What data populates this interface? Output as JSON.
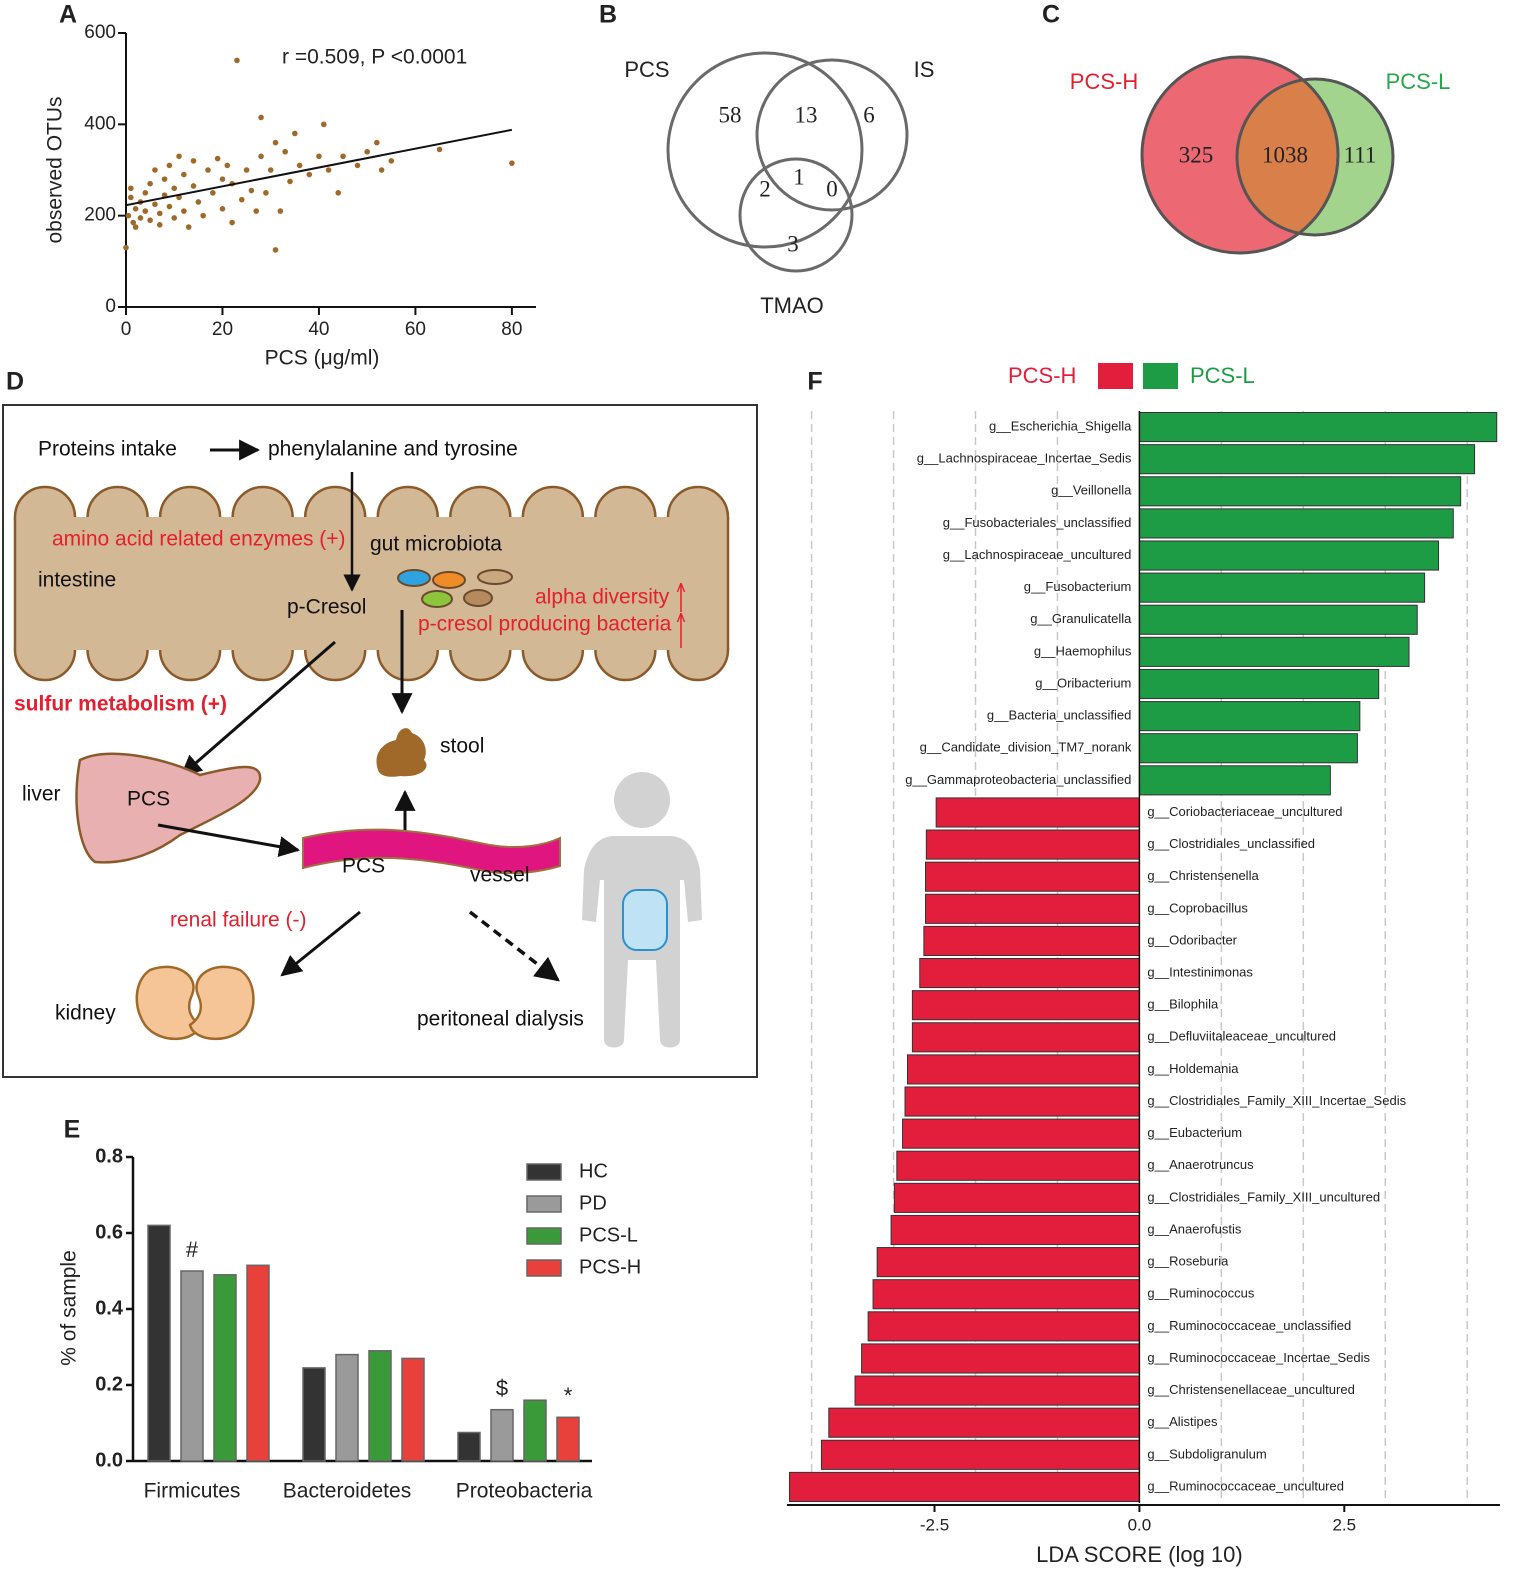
{
  "chart_data": [
    {
      "type": "scatter",
      "panel": "A",
      "title": "r =0.509, P <0.0001",
      "xlabel": "PCS  (μg/ml)",
      "ylabel": "observed OTUs",
      "xlim": [
        0,
        85
      ],
      "ylim": [
        0,
        600
      ],
      "xticks": [
        0,
        20,
        40,
        60,
        80
      ],
      "yticks": [
        0,
        200,
        400,
        600
      ],
      "color": "#a0692a",
      "x": [
        0,
        0.5,
        1,
        1,
        1.5,
        2,
        2,
        3,
        3,
        4,
        4,
        5,
        5,
        6,
        6,
        7,
        7,
        8,
        8,
        9,
        9,
        10,
        10,
        11,
        11,
        12,
        12,
        13,
        14,
        14,
        15,
        16,
        17,
        18,
        19,
        20,
        20,
        21,
        22,
        22,
        23,
        24,
        25,
        26,
        27,
        28,
        28,
        29,
        30,
        31,
        31,
        32,
        33,
        34,
        35,
        36,
        38,
        40,
        41,
        42,
        44,
        45,
        48,
        50,
        52,
        53,
        55,
        65,
        80
      ],
      "y": [
        130,
        200,
        260,
        240,
        185,
        175,
        215,
        195,
        230,
        250,
        210,
        270,
        190,
        225,
        300,
        205,
        180,
        280,
        245,
        220,
        310,
        195,
        260,
        330,
        240,
        210,
        290,
        175,
        265,
        320,
        230,
        200,
        300,
        250,
        325,
        280,
        215,
        310,
        185,
        270,
        540,
        235,
        300,
        255,
        210,
        330,
        415,
        250,
        300,
        360,
        125,
        210,
        340,
        275,
        380,
        310,
        290,
        330,
        400,
        300,
        250,
        330,
        310,
        340,
        360,
        300,
        320,
        345,
        315
      ],
      "fit": {
        "x": [
          0,
          80
        ],
        "y": [
          223,
          388
        ]
      }
    },
    {
      "type": "venn",
      "panel": "B",
      "labels": [
        "PCS",
        "IS",
        "TMAO"
      ],
      "regions": [
        58,
        13,
        6,
        2,
        1,
        0,
        3
      ]
    },
    {
      "type": "venn",
      "panel": "C",
      "labels": [
        "PCS-H",
        "PCS-L"
      ],
      "regions": [
        325,
        1038,
        111
      ],
      "colors": [
        "#ec6873",
        "#a3d48e"
      ],
      "overlap_color": "#d9804a"
    },
    {
      "type": "bar",
      "panel": "E",
      "ylabel": "% of sample",
      "categories": [
        "Firmicutes",
        "Bacteroidetes",
        "Proteobacteria"
      ],
      "series": [
        {
          "name": "HC",
          "color": "#333333",
          "values": [
            0.62,
            0.245,
            0.075
          ]
        },
        {
          "name": "PD",
          "color": "#9a9a9a",
          "values": [
            0.5,
            0.28,
            0.135
          ]
        },
        {
          "name": "PCS-L",
          "color": "#3a9a3a",
          "values": [
            0.49,
            0.29,
            0.16
          ]
        },
        {
          "name": "PCS-H",
          "color": "#e8403a",
          "values": [
            0.515,
            0.27,
            0.115
          ]
        }
      ],
      "ylim": [
        0,
        0.8
      ],
      "yticks": [
        {
          "value": 0,
          "label": "0.0"
        },
        0.2,
        0.4,
        0.6,
        0.8
      ],
      "annotations": [
        {
          "text": "#",
          "category": "Firmicutes",
          "series": "PD"
        },
        {
          "text": "$",
          "category": "Proteobacteria",
          "series": "PD"
        },
        {
          "text": "*",
          "category": "Proteobacteria",
          "series": "PCS-H"
        }
      ]
    },
    {
      "type": "barh",
      "panel": "F",
      "xlabel": "LDA SCORE (log 10)",
      "categories": [
        "g__Escherichia_Shigella",
        "g__Lachnospiraceae_Incertae_Sedis",
        "g__Veillonella",
        "g__Fusobacteriales_unclassified",
        "g__Lachnospiraceae_uncultured",
        "g__Fusobacterium",
        "g__Granulicatella",
        "g__Haemophilus",
        "g__Oribacterium",
        "g__Bacteria_unclassified",
        "g__Candidate_division_TM7_norank",
        "g__Gammaproteobacteria_unclassified",
        "g__Coriobacteriaceae_uncultured",
        "g__Clostridiales_unclassified",
        "g__Christensenella",
        "g__Coprobacillus",
        "g__Odoribacter",
        "g__Intestinimonas",
        "g__Bilophila",
        "g__Defluviitaleaceae_uncultured",
        "g__Holdemania",
        "g__Clostridiales_Family_XIII_Incertae_Sedis",
        "g__Eubacterium",
        "g__Anaerotruncus",
        "g__Clostridiales_Family_XIII_uncultured",
        "g__Anaerofustis",
        "g__Roseburia",
        "g__Ruminococcus",
        "g__Ruminococcaceae_unclassified",
        "g__Ruminococcaceae_Incertae_Sedis",
        "g__Christensenellaceae_uncultured",
        "g__Alistipes",
        "g__Subdoligranulum",
        "g__Ruminococcaceae_uncultured"
      ],
      "series": [
        {
          "name": "PCS-H",
          "color": "#e31e3c",
          "values": [
            null,
            null,
            null,
            null,
            null,
            null,
            null,
            null,
            null,
            null,
            null,
            null,
            -2.48,
            -2.6,
            -2.61,
            -2.61,
            -2.63,
            -2.68,
            -2.77,
            -2.77,
            -2.83,
            -2.86,
            -2.89,
            -2.96,
            -2.99,
            -3.03,
            -3.2,
            -3.25,
            -3.31,
            -3.39,
            -3.47,
            -3.79,
            -3.88,
            -4.27
          ]
        },
        {
          "name": "PCS-L",
          "color": "#1e9b45",
          "values": [
            4.36,
            4.09,
            3.92,
            3.83,
            3.65,
            3.48,
            3.39,
            3.29,
            2.92,
            2.69,
            2.66,
            2.33,
            null,
            null,
            null,
            null,
            null,
            null,
            null,
            null,
            null,
            null,
            null,
            null,
            null,
            null,
            null,
            null,
            null,
            null,
            null,
            null,
            null,
            null
          ]
        }
      ],
      "xlim": [
        -4.3,
        4.4
      ],
      "xticks": [
        -2.5,
        {
          "value": 0,
          "label": "0.0"
        },
        2.5
      ],
      "gridlines": [
        -4,
        -3,
        -2,
        -1,
        1,
        2,
        3,
        4
      ]
    }
  ],
  "diagram": {
    "panel": "D",
    "texts": [
      "Proteins intake",
      "phenylalanine and tyrosine",
      "amino acid related enzymes (+)",
      "gut microbiota",
      "intestine",
      "p-Cresol",
      "alpha diversity",
      "p-cresol producing bacteria",
      "sulfur metabolism (+)",
      "stool",
      "liver",
      "PCS",
      "PCS",
      "vessel",
      "renal failure (-)",
      "kidney",
      "peritoneal dialysis"
    ]
  }
}
